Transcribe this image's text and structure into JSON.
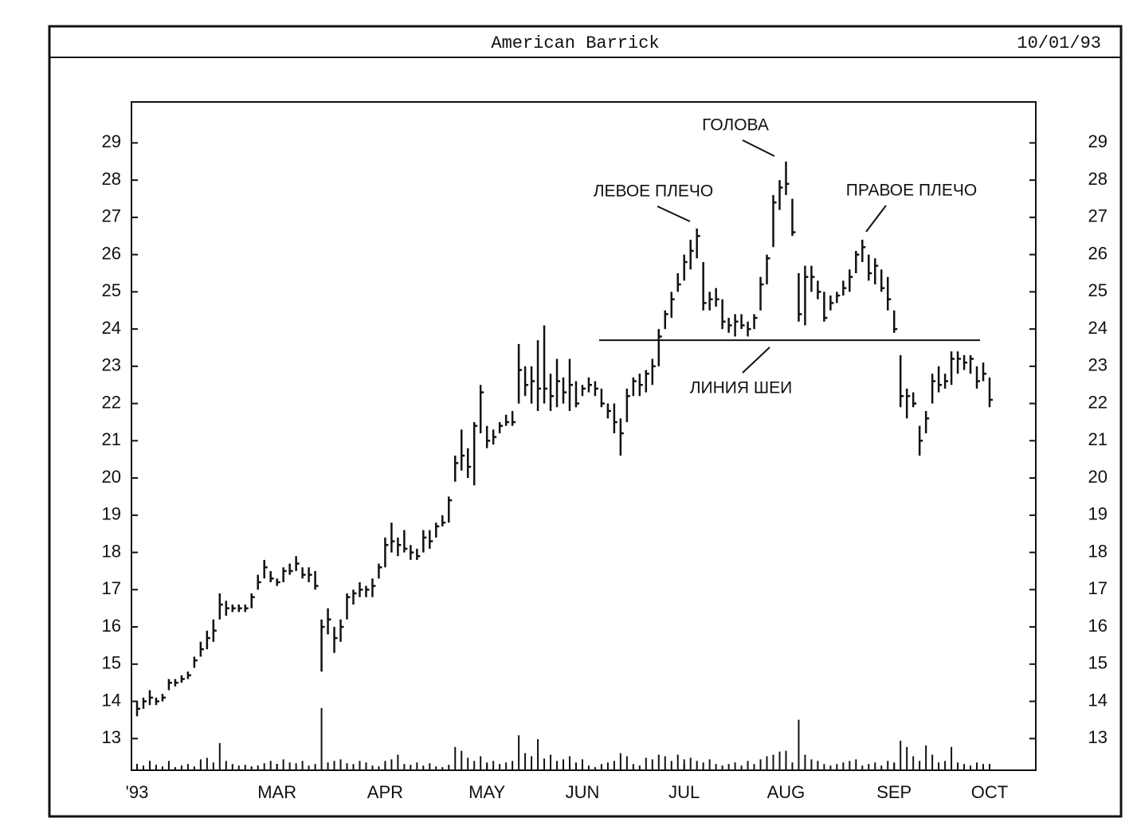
{
  "chart_data": {
    "type": "ohlc",
    "title": "American Barrick",
    "date": "10/01/93",
    "categories": [
      "'93",
      null,
      null,
      null,
      null,
      null,
      null,
      null,
      null,
      null,
      null,
      null,
      null,
      null,
      null,
      null,
      null,
      null,
      null,
      null,
      null,
      null,
      "MAR",
      null,
      null,
      null,
      null,
      null,
      null,
      null,
      null,
      null,
      null,
      null,
      null,
      null,
      null,
      null,
      null,
      "APR",
      null,
      null,
      null,
      null,
      null,
      null,
      null,
      null,
      null,
      null,
      null,
      null,
      null,
      null,
      null,
      "MAY",
      null,
      null,
      null,
      null,
      null,
      null,
      null,
      null,
      null,
      null,
      null,
      null,
      null,
      null,
      "JUN",
      null,
      null,
      null,
      null,
      null,
      null,
      null,
      null,
      null,
      null,
      null,
      null,
      null,
      null,
      null,
      "JUL",
      null,
      null,
      null,
      null,
      null,
      null,
      null,
      null,
      null,
      null,
      null,
      null,
      null,
      null,
      null,
      "AUG",
      null,
      null,
      null,
      null,
      null,
      null,
      null,
      null,
      null,
      null,
      null,
      null,
      null,
      null,
      null,
      null,
      "SEP",
      null,
      null,
      null,
      null,
      null,
      null,
      null,
      null,
      null,
      null,
      null,
      null,
      null,
      null,
      "OCT"
    ],
    "high": [
      14.0,
      14.1,
      14.3,
      14.1,
      14.2,
      14.6,
      14.6,
      14.7,
      14.8,
      15.2,
      15.6,
      15.9,
      16.2,
      16.9,
      16.7,
      16.6,
      16.6,
      16.6,
      16.9,
      17.4,
      17.8,
      17.5,
      17.3,
      17.6,
      17.7,
      17.9,
      17.6,
      17.6,
      17.5,
      16.2,
      16.5,
      16.0,
      16.2,
      16.9,
      17.0,
      17.2,
      17.1,
      17.3,
      17.7,
      18.4,
      18.8,
      18.4,
      18.6,
      18.2,
      18.1,
      18.6,
      18.6,
      18.8,
      19.0,
      19.5,
      20.6,
      21.3,
      20.8,
      21.5,
      22.5,
      21.4,
      21.3,
      21.5,
      21.7,
      21.8,
      23.6,
      23.0,
      23.0,
      23.7,
      24.1,
      22.8,
      23.2,
      22.7,
      23.2,
      22.6,
      22.5,
      22.7,
      22.6,
      22.4,
      22.0,
      22.0,
      21.6,
      22.4,
      22.7,
      22.8,
      22.9,
      23.2,
      24.0,
      24.5,
      25.0,
      25.5,
      26.0,
      26.4,
      26.7,
      25.8,
      25.0,
      25.1,
      24.8,
      24.3,
      24.4,
      24.4,
      24.2,
      24.4,
      25.4,
      26.0,
      27.6,
      28.0,
      28.5,
      27.5,
      25.5,
      25.7,
      25.7,
      25.3,
      25.0,
      24.9,
      25.0,
      25.3,
      25.6,
      26.1,
      26.4,
      26.0,
      25.9,
      25.6,
      25.4,
      24.5,
      23.3,
      22.4,
      22.3,
      21.4,
      21.8,
      22.8,
      23.0,
      22.8,
      23.4,
      23.4,
      23.3,
      23.3,
      23.0,
      23.1,
      22.7
    ],
    "low": [
      13.6,
      13.8,
      13.9,
      13.9,
      14.0,
      14.3,
      14.4,
      14.5,
      14.6,
      14.9,
      15.2,
      15.4,
      15.6,
      16.2,
      16.3,
      16.4,
      16.4,
      16.4,
      16.5,
      17.0,
      17.3,
      17.2,
      17.1,
      17.2,
      17.4,
      17.5,
      17.3,
      17.2,
      17.0,
      14.8,
      15.8,
      15.3,
      15.6,
      16.2,
      16.6,
      16.8,
      16.8,
      16.8,
      17.3,
      17.6,
      18.0,
      17.9,
      18.0,
      17.8,
      17.8,
      18.0,
      18.1,
      18.4,
      18.7,
      18.8,
      19.9,
      20.2,
      20.0,
      19.8,
      21.2,
      20.8,
      20.9,
      21.2,
      21.4,
      21.4,
      22.0,
      22.2,
      22.0,
      21.8,
      22.0,
      21.8,
      21.9,
      22.0,
      21.8,
      21.9,
      22.2,
      22.3,
      22.2,
      21.9,
      21.6,
      21.2,
      20.6,
      21.5,
      22.2,
      22.2,
      22.3,
      22.5,
      23.0,
      24.0,
      24.3,
      25.0,
      25.3,
      25.6,
      25.9,
      24.5,
      24.5,
      24.6,
      24.0,
      23.9,
      23.8,
      24.0,
      23.8,
      24.0,
      24.5,
      25.2,
      26.2,
      27.2,
      27.6,
      26.5,
      24.2,
      24.1,
      25.0,
      24.8,
      24.2,
      24.5,
      24.7,
      24.9,
      25.0,
      25.5,
      25.8,
      25.3,
      25.2,
      25.0,
      24.5,
      23.9,
      21.9,
      21.6,
      21.9,
      20.6,
      21.2,
      22.0,
      22.3,
      22.4,
      22.5,
      22.8,
      22.9,
      22.8,
      22.4,
      22.6,
      21.9
    ],
    "close": [
      13.8,
      14.0,
      14.1,
      14.0,
      14.1,
      14.5,
      14.5,
      14.6,
      14.7,
      15.1,
      15.4,
      15.7,
      15.9,
      16.6,
      16.5,
      16.5,
      16.5,
      16.5,
      16.8,
      17.2,
      17.6,
      17.3,
      17.2,
      17.5,
      17.5,
      17.7,
      17.4,
      17.4,
      17.1,
      16.0,
      16.2,
      15.7,
      16.0,
      16.8,
      16.9,
      17.0,
      17.0,
      17.1,
      17.6,
      18.2,
      18.3,
      18.2,
      18.1,
      18.0,
      17.9,
      18.4,
      18.3,
      18.7,
      18.8,
      19.4,
      20.4,
      20.6,
      20.3,
      21.4,
      22.3,
      21.0,
      21.1,
      21.4,
      21.5,
      21.5,
      22.9,
      22.5,
      22.6,
      22.4,
      22.4,
      22.2,
      22.6,
      22.3,
      22.5,
      22.0,
      22.4,
      22.5,
      22.4,
      22.0,
      21.8,
      21.5,
      21.2,
      22.2,
      22.6,
      22.5,
      22.8,
      23.0,
      23.8,
      24.4,
      24.8,
      25.2,
      25.8,
      26.1,
      26.5,
      24.7,
      24.8,
      24.8,
      24.2,
      24.1,
      24.2,
      24.1,
      24.0,
      24.3,
      25.2,
      25.9,
      27.4,
      27.8,
      27.9,
      26.6,
      24.4,
      25.4,
      25.4,
      25.0,
      24.3,
      24.7,
      24.9,
      25.1,
      25.4,
      26.0,
      26.2,
      25.5,
      25.7,
      25.1,
      24.8,
      24.0,
      22.2,
      22.2,
      22.0,
      21.0,
      21.6,
      22.6,
      22.5,
      22.6,
      23.2,
      23.2,
      23.1,
      23.2,
      22.6,
      22.8,
      22.1
    ],
    "volume": [
      8,
      6,
      12,
      7,
      5,
      12,
      4,
      6,
      8,
      5,
      14,
      16,
      10,
      35,
      12,
      8,
      6,
      7,
      5,
      6,
      9,
      12,
      8,
      14,
      10,
      9,
      12,
      6,
      8,
      80,
      10,
      12,
      14,
      9,
      8,
      12,
      10,
      6,
      5,
      12,
      14,
      20,
      8,
      7,
      10,
      6,
      9,
      5,
      4,
      7,
      30,
      25,
      16,
      12,
      18,
      10,
      12,
      8,
      10,
      12,
      45,
      22,
      18,
      40,
      15,
      20,
      12,
      14,
      18,
      10,
      14,
      6,
      4,
      8,
      10,
      12,
      22,
      18,
      8,
      6,
      16,
      14,
      20,
      18,
      12,
      20,
      14,
      16,
      12,
      10,
      14,
      8,
      6,
      8,
      10,
      6,
      12,
      8,
      14,
      18,
      20,
      24,
      25,
      10,
      65,
      20,
      14,
      12,
      8,
      6,
      8,
      10,
      12,
      14,
      6,
      8,
      10,
      6,
      12,
      10,
      38,
      30,
      18,
      12,
      32,
      20,
      10,
      12,
      30,
      10,
      8,
      6,
      10,
      8,
      6
    ],
    "color": "#111111",
    "ylim": [
      12.15,
      30.1
    ],
    "yticks": [
      13,
      14,
      15,
      16,
      17,
      18,
      19,
      20,
      21,
      22,
      23,
      24,
      25,
      26,
      27,
      28,
      29
    ],
    "annotations": [
      {
        "text": "ЛЕВОЕ ПЛЕЧО"
      },
      {
        "text": "ГОЛОВА"
      },
      {
        "text": "ПРАВОЕ ПЛЕЧО"
      }
    ],
    "neckline": {
      "label": "ЛИНИЯ ШЕИ",
      "value": 23.7
    }
  }
}
